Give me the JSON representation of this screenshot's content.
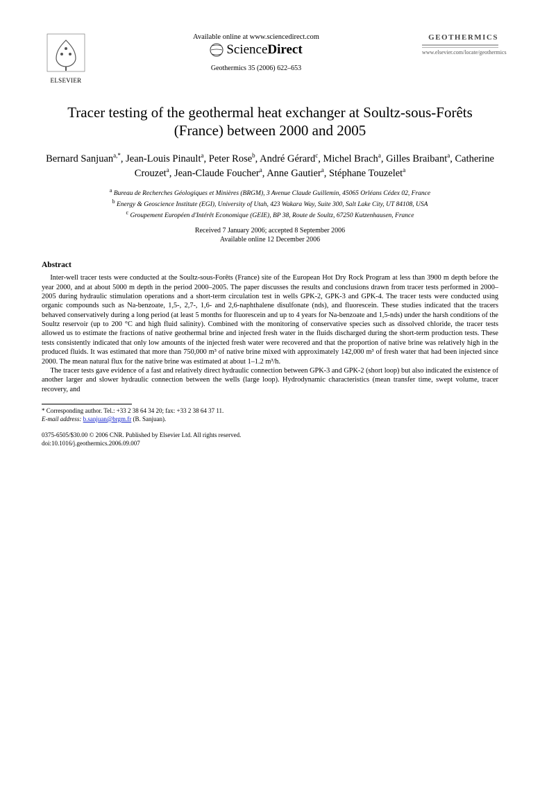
{
  "header": {
    "available_online": "Available online at www.sciencedirect.com",
    "sciencedirect_prefix": "Science",
    "sciencedirect_suffix": "Direct",
    "journal_reference": "Geothermics 35 (2006) 622–653",
    "elsevier_label": "ELSEVIER",
    "journal_cover_title": "GEOTHERMICS",
    "journal_url": "www.elsevier.com/locate/geothermics"
  },
  "title": "Tracer testing of the geothermal heat exchanger at Soultz-sous-Forêts (France) between 2000 and 2005",
  "authors_html": "Bernard Sanjuan<sup>a,*</sup>, Jean-Louis Pinault<sup>a</sup>, Peter Rose<sup>b</sup>, André Gérard<sup>c</sup>, Michel Brach<sup>a</sup>, Gilles Braibant<sup>a</sup>, Catherine Crouzet<sup>a</sup>, Jean-Claude Foucher<sup>a</sup>, Anne Gautier<sup>a</sup>, Stéphane Touzelet<sup>a</sup>",
  "affiliations": {
    "a": "Bureau de Recherches Géologiques et Minières (BRGM), 3 Avenue Claude Guillemin, 45065 Orléans Cédex 02, France",
    "b": "Energy & Geoscience Institute (EGI), University of Utah, 423 Wakara Way, Suite 300, Salt Lake City, UT 84108, USA",
    "c": "Groupement Européen d'Intérêt Economique (GEIE), BP 38, Route de Soultz, 67250 Kutzenhausen, France"
  },
  "dates": {
    "received_accepted": "Received 7 January 2006; accepted 8 September 2006",
    "available": "Available online 12 December 2006"
  },
  "abstract": {
    "heading": "Abstract",
    "p1": "Inter-well tracer tests were conducted at the Soultz-sous-Forêts (France) site of the European Hot Dry Rock Program at less than 3900 m depth before the year 2000, and at about 5000 m depth in the period 2000–2005. The paper discusses the results and conclusions drawn from tracer tests performed in 2000–2005 during hydraulic stimulation operations and a short-term circulation test in wells GPK-2, GPK-3 and GPK-4. The tracer tests were conducted using organic compounds such as Na-benzoate, 1,5-, 2,7-, 1,6- and 2,6-naphthalene disulfonate (nds), and fluorescein. These studies indicated that the tracers behaved conservatively during a long period (at least 5 months for fluorescein and up to 4 years for Na-benzoate and 1,5-nds) under the harsh conditions of the Soultz reservoir (up to 200 °C and high fluid salinity). Combined with the monitoring of conservative species such as dissolved chloride, the tracer tests allowed us to estimate the fractions of native geothermal brine and injected fresh water in the fluids discharged during the short-term production tests. These tests consistently indicated that only low amounts of the injected fresh water were recovered and that the proportion of native brine was relatively high in the produced fluids. It was estimated that more than 750,000 m³ of native brine mixed with approximately 142,000 m³ of fresh water that had been injected since 2000. The mean natural flux for the native brine was estimated at about 1–1.2 m³/h.",
    "p2": "The tracer tests gave evidence of a fast and relatively direct hydraulic connection between GPK-3 and GPK-2 (short loop) but also indicated the existence of another larger and slower hydraulic connection between the wells (large loop). Hydrodynamic characteristics (mean transfer time, swept volume, tracer recovery, and"
  },
  "footnote": {
    "corresponding": "* Corresponding author. Tel.: +33 2 38 64 34 20; fax: +33 2 38 64 37 11.",
    "email_label": "E-mail address:",
    "email": "b.sanjuan@brgm.fr",
    "email_person": "(B. Sanjuan)."
  },
  "bottom": {
    "copyright": "0375-6505/$30.00 © 2006 CNR. Published by Elsevier Ltd. All rights reserved.",
    "doi": "doi:10.1016/j.geothermics.2006.09.007"
  },
  "colors": {
    "text": "#000000",
    "link": "#1020cc",
    "journal_cover_title": "#444444",
    "journal_rule": "#b0b0b0",
    "journal_url": "#555555"
  }
}
